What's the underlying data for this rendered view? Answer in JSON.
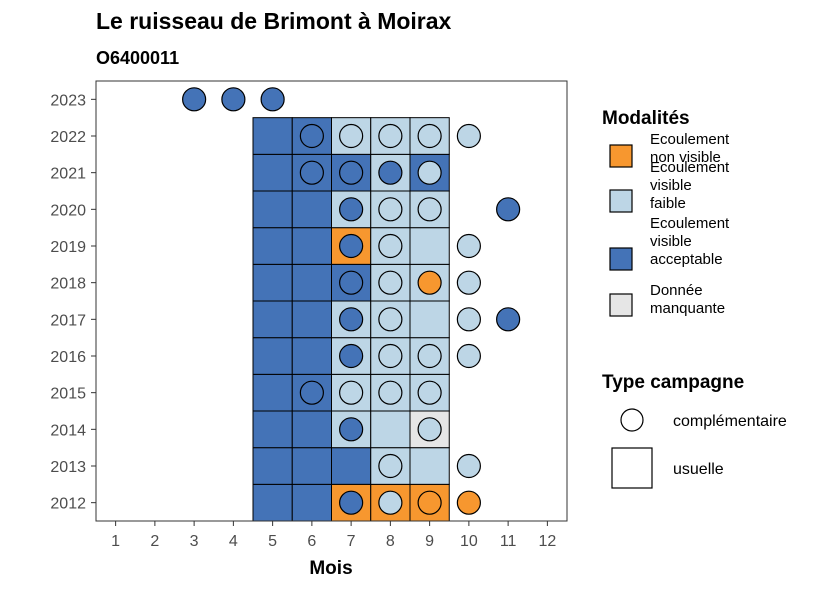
{
  "chart_data": {
    "type": "heatmap",
    "title": "Le ruisseau de Brimont à Moirax",
    "subtitle": "O6400011",
    "xlabel": "Mois",
    "ylabel": "",
    "x_ticks": [
      "1",
      "2",
      "3",
      "4",
      "5",
      "6",
      "7",
      "8",
      "9",
      "10",
      "11",
      "12"
    ],
    "y_ticks": [
      "2012",
      "2013",
      "2014",
      "2015",
      "2016",
      "2017",
      "2018",
      "2019",
      "2020",
      "2021",
      "2022",
      "2023"
    ],
    "xlim": [
      0.5,
      12.5
    ],
    "ylim": [
      2011.5,
      2023.5
    ],
    "grid": false,
    "legend_modalites": {
      "title": "Modalités",
      "placement": "right",
      "entries": [
        {
          "key": "nv",
          "label_lines": [
            "Ecoulement",
            "non visible"
          ],
          "color": "#F7972F"
        },
        {
          "key": "vf",
          "label_lines": [
            "Ecoulement",
            "visible",
            "faible"
          ],
          "color": "#BDD6E6"
        },
        {
          "key": "va",
          "label_lines": [
            "Ecoulement",
            "visible",
            "acceptable"
          ],
          "color": "#4473B7"
        },
        {
          "key": "dm",
          "label_lines": [
            "Donnée",
            "manquante"
          ],
          "color": "#E6E6E6"
        }
      ]
    },
    "legend_campagne": {
      "title": "Type campagne",
      "placement": "right",
      "entries": [
        {
          "key": "circle",
          "label": "complémentaire"
        },
        {
          "key": "square",
          "label": "usuelle"
        }
      ]
    },
    "tiles": [
      {
        "year": 2012,
        "month": 5,
        "v": "va"
      },
      {
        "year": 2012,
        "month": 6,
        "v": "va"
      },
      {
        "year": 2012,
        "month": 7,
        "v": "nv"
      },
      {
        "year": 2012,
        "month": 8,
        "v": "nv"
      },
      {
        "year": 2012,
        "month": 9,
        "v": "nv"
      },
      {
        "year": 2013,
        "month": 5,
        "v": "va"
      },
      {
        "year": 2013,
        "month": 6,
        "v": "va"
      },
      {
        "year": 2013,
        "month": 7,
        "v": "va"
      },
      {
        "year": 2013,
        "month": 8,
        "v": "vf"
      },
      {
        "year": 2013,
        "month": 9,
        "v": "vf"
      },
      {
        "year": 2014,
        "month": 5,
        "v": "va"
      },
      {
        "year": 2014,
        "month": 6,
        "v": "va"
      },
      {
        "year": 2014,
        "month": 7,
        "v": "vf"
      },
      {
        "year": 2014,
        "month": 8,
        "v": "vf"
      },
      {
        "year": 2014,
        "month": 9,
        "v": "dm"
      },
      {
        "year": 2015,
        "month": 5,
        "v": "va"
      },
      {
        "year": 2015,
        "month": 6,
        "v": "va"
      },
      {
        "year": 2015,
        "month": 7,
        "v": "vf"
      },
      {
        "year": 2015,
        "month": 8,
        "v": "vf"
      },
      {
        "year": 2015,
        "month": 9,
        "v": "vf"
      },
      {
        "year": 2016,
        "month": 5,
        "v": "va"
      },
      {
        "year": 2016,
        "month": 6,
        "v": "va"
      },
      {
        "year": 2016,
        "month": 7,
        "v": "vf"
      },
      {
        "year": 2016,
        "month": 8,
        "v": "vf"
      },
      {
        "year": 2016,
        "month": 9,
        "v": "vf"
      },
      {
        "year": 2017,
        "month": 5,
        "v": "va"
      },
      {
        "year": 2017,
        "month": 6,
        "v": "va"
      },
      {
        "year": 2017,
        "month": 7,
        "v": "vf"
      },
      {
        "year": 2017,
        "month": 8,
        "v": "vf"
      },
      {
        "year": 2017,
        "month": 9,
        "v": "vf"
      },
      {
        "year": 2018,
        "month": 5,
        "v": "va"
      },
      {
        "year": 2018,
        "month": 6,
        "v": "va"
      },
      {
        "year": 2018,
        "month": 7,
        "v": "va"
      },
      {
        "year": 2018,
        "month": 8,
        "v": "vf"
      },
      {
        "year": 2018,
        "month": 9,
        "v": "vf"
      },
      {
        "year": 2019,
        "month": 5,
        "v": "va"
      },
      {
        "year": 2019,
        "month": 6,
        "v": "va"
      },
      {
        "year": 2019,
        "month": 7,
        "v": "nv"
      },
      {
        "year": 2019,
        "month": 8,
        "v": "vf"
      },
      {
        "year": 2019,
        "month": 9,
        "v": "vf"
      },
      {
        "year": 2020,
        "month": 5,
        "v": "va"
      },
      {
        "year": 2020,
        "month": 6,
        "v": "va"
      },
      {
        "year": 2020,
        "month": 7,
        "v": "vf"
      },
      {
        "year": 2020,
        "month": 8,
        "v": "vf"
      },
      {
        "year": 2020,
        "month": 9,
        "v": "vf"
      },
      {
        "year": 2021,
        "month": 5,
        "v": "va"
      },
      {
        "year": 2021,
        "month": 6,
        "v": "va"
      },
      {
        "year": 2021,
        "month": 7,
        "v": "va"
      },
      {
        "year": 2021,
        "month": 8,
        "v": "vf"
      },
      {
        "year": 2021,
        "month": 9,
        "v": "va"
      },
      {
        "year": 2022,
        "month": 5,
        "v": "va"
      },
      {
        "year": 2022,
        "month": 6,
        "v": "va"
      },
      {
        "year": 2022,
        "month": 7,
        "v": "vf"
      },
      {
        "year": 2022,
        "month": 8,
        "v": "vf"
      },
      {
        "year": 2022,
        "month": 9,
        "v": "vf"
      }
    ],
    "points": [
      {
        "year": 2012,
        "month": 7,
        "v": "va"
      },
      {
        "year": 2012,
        "month": 8,
        "v": "vf"
      },
      {
        "year": 2012,
        "month": 9,
        "v": "nv"
      },
      {
        "year": 2012,
        "month": 10,
        "v": "nv"
      },
      {
        "year": 2013,
        "month": 8,
        "v": "vf"
      },
      {
        "year": 2013,
        "month": 10,
        "v": "vf"
      },
      {
        "year": 2014,
        "month": 7,
        "v": "va"
      },
      {
        "year": 2014,
        "month": 9,
        "v": "vf"
      },
      {
        "year": 2015,
        "month": 6,
        "v": "va"
      },
      {
        "year": 2015,
        "month": 7,
        "v": "vf"
      },
      {
        "year": 2015,
        "month": 8,
        "v": "vf"
      },
      {
        "year": 2015,
        "month": 9,
        "v": "vf"
      },
      {
        "year": 2016,
        "month": 7,
        "v": "va"
      },
      {
        "year": 2016,
        "month": 8,
        "v": "vf"
      },
      {
        "year": 2016,
        "month": 9,
        "v": "vf"
      },
      {
        "year": 2016,
        "month": 10,
        "v": "vf"
      },
      {
        "year": 2017,
        "month": 7,
        "v": "va"
      },
      {
        "year": 2017,
        "month": 8,
        "v": "vf"
      },
      {
        "year": 2017,
        "month": 10,
        "v": "vf"
      },
      {
        "year": 2017,
        "month": 11,
        "v": "va"
      },
      {
        "year": 2018,
        "month": 7,
        "v": "va"
      },
      {
        "year": 2018,
        "month": 8,
        "v": "vf"
      },
      {
        "year": 2018,
        "month": 9,
        "v": "nv"
      },
      {
        "year": 2018,
        "month": 10,
        "v": "vf"
      },
      {
        "year": 2019,
        "month": 7,
        "v": "va"
      },
      {
        "year": 2019,
        "month": 8,
        "v": "vf"
      },
      {
        "year": 2019,
        "month": 10,
        "v": "vf"
      },
      {
        "year": 2020,
        "month": 7,
        "v": "va"
      },
      {
        "year": 2020,
        "month": 8,
        "v": "vf"
      },
      {
        "year": 2020,
        "month": 9,
        "v": "vf"
      },
      {
        "year": 2020,
        "month": 11,
        "v": "va"
      },
      {
        "year": 2021,
        "month": 6,
        "v": "va"
      },
      {
        "year": 2021,
        "month": 7,
        "v": "va"
      },
      {
        "year": 2021,
        "month": 8,
        "v": "va"
      },
      {
        "year": 2021,
        "month": 9,
        "v": "vf"
      },
      {
        "year": 2022,
        "month": 6,
        "v": "va"
      },
      {
        "year": 2022,
        "month": 7,
        "v": "vf"
      },
      {
        "year": 2022,
        "month": 8,
        "v": "vf"
      },
      {
        "year": 2022,
        "month": 9,
        "v": "vf"
      },
      {
        "year": 2022,
        "month": 10,
        "v": "vf"
      },
      {
        "year": 2023,
        "month": 3,
        "v": "va"
      },
      {
        "year": 2023,
        "month": 4,
        "v": "va"
      },
      {
        "year": 2023,
        "month": 5,
        "v": "va"
      }
    ]
  }
}
